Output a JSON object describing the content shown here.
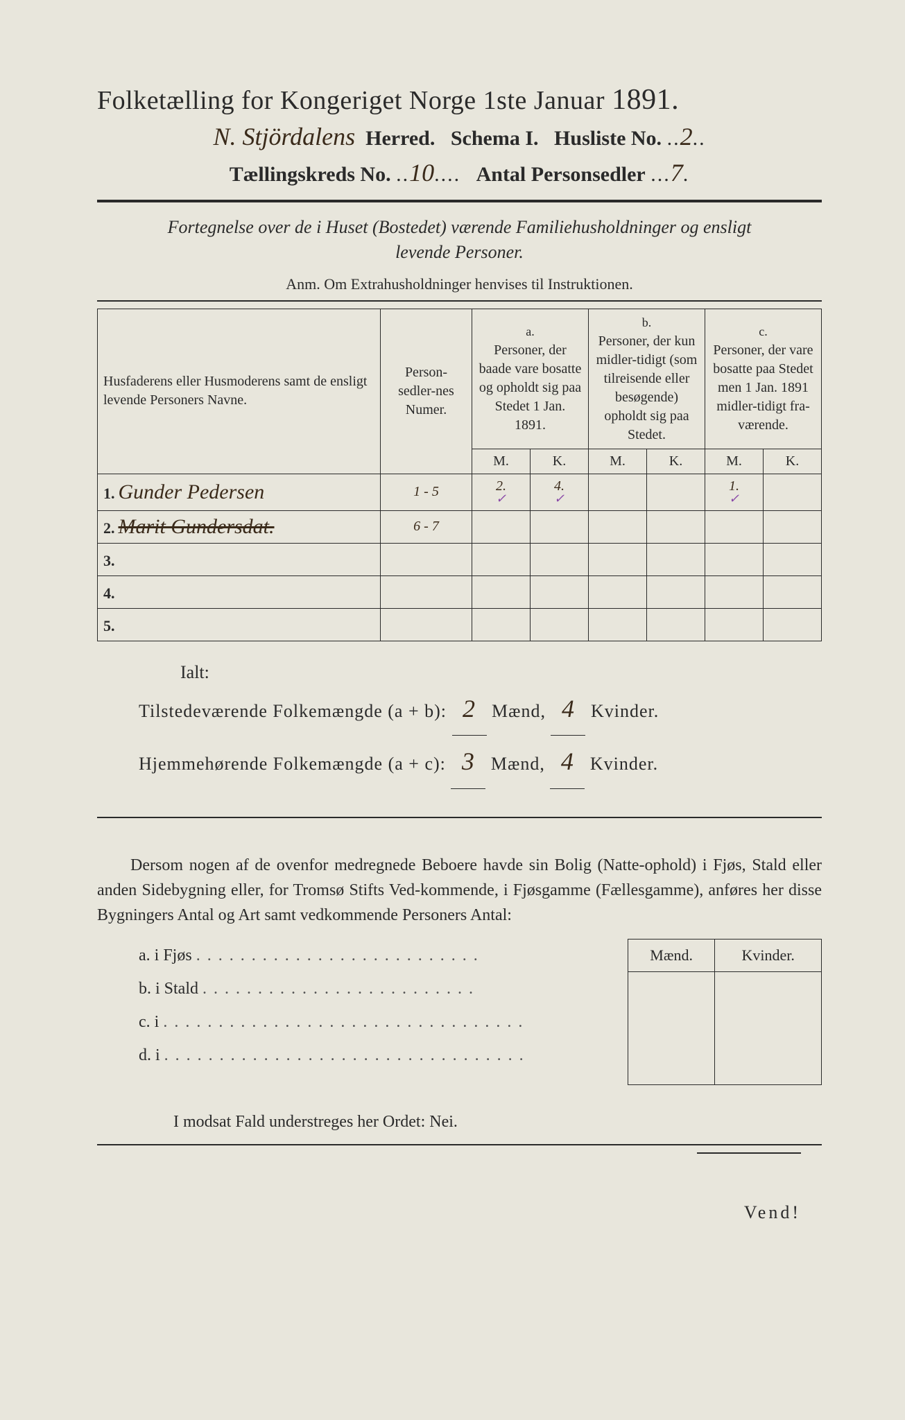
{
  "header": {
    "title_prefix": "Folketælling for Kongeriget Norge 1ste Januar",
    "year": "1891.",
    "herred_hw": "N. Stjördalens",
    "herred_label": "Herred.",
    "schema_label": "Schema I.",
    "husliste_label": "Husliste No.",
    "husliste_hw": "2",
    "kreds_label": "Tællingskreds No.",
    "kreds_hw": "10",
    "antal_label": "Antal Personsedler",
    "antal_hw": "7"
  },
  "subtitle": {
    "line1": "Fortegnelse over de i Huset (Bostedet) værende Familiehusholdninger og ensligt",
    "line2": "levende Personer.",
    "anm": "Anm. Om Extrahusholdninger henvises til Instruktionen."
  },
  "table": {
    "head_name": "Husfaderens eller Husmoderens samt de ensligt levende Personers Navne.",
    "head_num": "Person-sedler-nes Numer.",
    "col_a_letter": "a.",
    "col_a": "Personer, der baade vare bosatte og opholdt sig paa Stedet 1 Jan. 1891.",
    "col_b_letter": "b.",
    "col_b": "Personer, der kun midler-tidigt (som tilreisende eller besøgende) opholdt sig paa Stedet.",
    "col_c_letter": "c.",
    "col_c": "Personer, der vare bosatte paa Stedet men 1 Jan. 1891 midler-tidigt fra-værende.",
    "M": "M.",
    "K": "K.",
    "rows": [
      {
        "n": "1.",
        "name": "Gunder Pedersen",
        "num": "1 - 5",
        "aM": "2.",
        "aK": "4.",
        "bM": "",
        "bK": "",
        "cM": "1.",
        "cK": ""
      },
      {
        "n": "2.",
        "name": "Marit Gundersdat.",
        "num": "6 - 7",
        "aM": "",
        "aK": "",
        "bM": "",
        "bK": "",
        "cM": "",
        "cK": "",
        "struck": true
      },
      {
        "n": "3.",
        "name": "",
        "num": "",
        "aM": "",
        "aK": "",
        "bM": "",
        "bK": "",
        "cM": "",
        "cK": ""
      },
      {
        "n": "4.",
        "name": "",
        "num": "",
        "aM": "",
        "aK": "",
        "bM": "",
        "bK": "",
        "cM": "",
        "cK": ""
      },
      {
        "n": "5.",
        "name": "",
        "num": "",
        "aM": "",
        "aK": "",
        "bM": "",
        "bK": "",
        "cM": "",
        "cK": ""
      }
    ]
  },
  "totals": {
    "ialt": "Ialt:",
    "line1_label": "Tilstedeværende Folkemængde (a + b):",
    "line1_m": "2",
    "maend": "Mænd,",
    "line1_k": "4",
    "kvinder": "Kvinder.",
    "line2_label": "Hjemmehørende Folkemængde (a + c):",
    "line2_m": "3",
    "line2_k": "4"
  },
  "paragraph": {
    "text": "Dersom nogen af de ovenfor medregnede Beboere havde sin Bolig (Natte-ophold) i Fjøs, Stald eller anden Sidebygning eller, for Tromsø Stifts Ved-kommende, i Fjøsgamme (Fællesgamme), anføres her disse Bygningers Antal og Art samt vedkommende Personers Antal:"
  },
  "sidelist": {
    "a": "a.  i      Fjøs",
    "b": "b.  i      Stald",
    "c": "c.  i",
    "d": "d.  i"
  },
  "mk": {
    "m": "Mænd.",
    "k": "Kvinder."
  },
  "nei": "I modsat Fald understreges her Ordet: Nei.",
  "vend": "Vend!"
}
